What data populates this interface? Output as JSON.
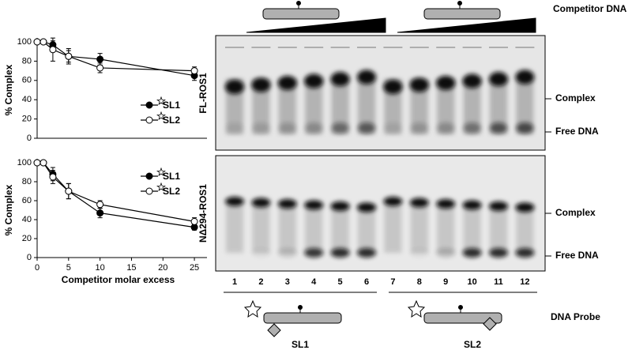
{
  "chart_data": [
    {
      "type": "line",
      "ylabel": "% Complex",
      "x": [
        0,
        1,
        2.5,
        5,
        10,
        25
      ],
      "xlim": [
        0,
        27
      ],
      "ylim": [
        0,
        100
      ],
      "yticks": [
        0,
        20,
        40,
        60,
        80,
        100
      ],
      "series": [
        {
          "name": "SL1",
          "color": "#000000",
          "values": [
            100,
            100,
            97,
            85,
            82,
            65
          ],
          "errors": [
            0,
            0,
            4,
            6,
            6,
            5
          ]
        },
        {
          "name": "SL2",
          "color": "#ffffff",
          "values": [
            100,
            100,
            92,
            85,
            73,
            70
          ],
          "errors": [
            0,
            0,
            12,
            8,
            5,
            4
          ]
        }
      ]
    },
    {
      "type": "line",
      "ylabel": "% Complex",
      "xlabel": "Competitor molar excess",
      "x": [
        0,
        1,
        2.5,
        5,
        10,
        25
      ],
      "xlim": [
        0,
        27
      ],
      "xticks": [
        0,
        5,
        10,
        15,
        20,
        25
      ],
      "ylim": [
        0,
        100
      ],
      "yticks": [
        0,
        20,
        40,
        60,
        80,
        100
      ],
      "series": [
        {
          "name": "SL1",
          "color": "#000000",
          "values": [
            100,
            100,
            88,
            70,
            47,
            32
          ],
          "errors": [
            0,
            0,
            7,
            8,
            5,
            3
          ]
        },
        {
          "name": "SL2",
          "color": "#ffffff",
          "values": [
            100,
            100,
            85,
            70,
            56,
            38
          ],
          "errors": [
            0,
            0,
            7,
            8,
            4,
            4
          ]
        }
      ]
    }
  ],
  "gel": {
    "competitor": "Competitor DNA",
    "top_label": "FL-ROS1",
    "bottom_label": "NΔ294-ROS1",
    "complex": "Complex",
    "free": "Free DNA",
    "lanes": [
      "1",
      "2",
      "3",
      "4",
      "5",
      "6",
      "7",
      "8",
      "9",
      "10",
      "11",
      "12"
    ],
    "probe": "DNA Probe",
    "probe1": "SL1",
    "probe2": "SL2"
  }
}
